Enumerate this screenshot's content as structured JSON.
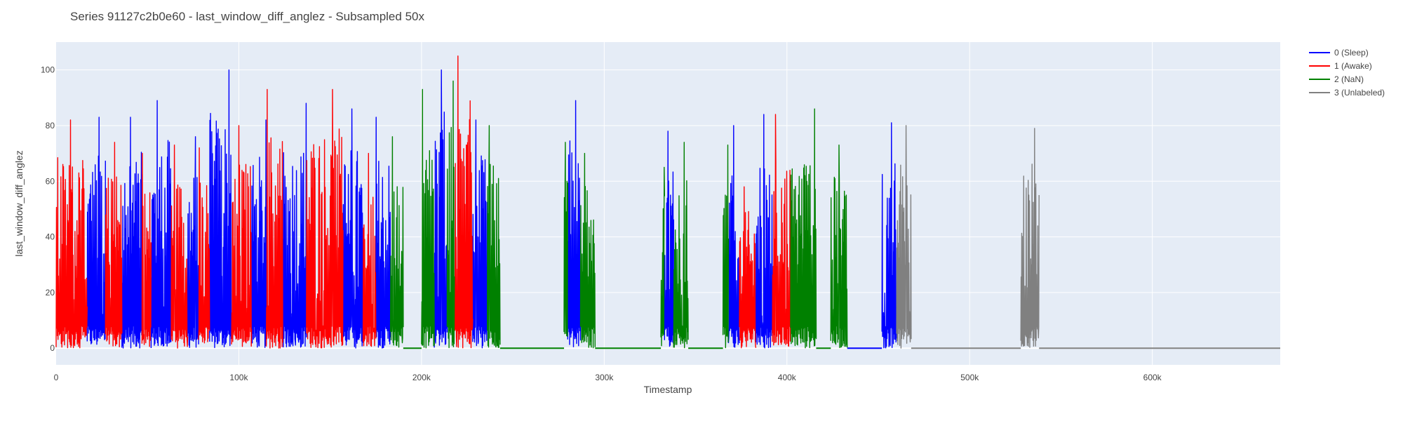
{
  "chart_data": {
    "type": "line",
    "title": "Series 91127c2b0e60 - last_window_diff_anglez - Subsampled 50x",
    "xlabel": "Timestamp",
    "ylabel": "last_window_diff_anglez",
    "xlim": [
      0,
      670000
    ],
    "ylim": [
      -6,
      110
    ],
    "xticks": [
      {
        "value": 0,
        "label": "0"
      },
      {
        "value": 100000,
        "label": "100k"
      },
      {
        "value": 200000,
        "label": "200k"
      },
      {
        "value": 300000,
        "label": "300k"
      },
      {
        "value": 400000,
        "label": "400k"
      },
      {
        "value": 500000,
        "label": "500k"
      },
      {
        "value": 600000,
        "label": "600k"
      }
    ],
    "yticks": [
      {
        "value": 0,
        "label": "0"
      },
      {
        "value": 20,
        "label": "20"
      },
      {
        "value": 40,
        "label": "40"
      },
      {
        "value": 60,
        "label": "60"
      },
      {
        "value": 80,
        "label": "80"
      },
      {
        "value": 100,
        "label": "100"
      }
    ],
    "grid": true,
    "legend_position": "top-right",
    "plot_background": "#e5ecf6",
    "series": [
      {
        "name": "0 (Sleep)",
        "color": "#0000ff",
        "segments": [
          {
            "x_start": 17000,
            "x_end": 27000,
            "peak": 83
          },
          {
            "x_start": 36000,
            "x_end": 47000,
            "peak": 83
          },
          {
            "x_start": 52000,
            "x_end": 63000,
            "peak": 89
          },
          {
            "x_start": 72000,
            "x_end": 78000,
            "peak": 76
          },
          {
            "x_start": 84000,
            "x_end": 96000,
            "peak": 100
          },
          {
            "x_start": 107000,
            "x_end": 115000,
            "peak": 82
          },
          {
            "x_start": 124000,
            "x_end": 137000,
            "peak": 88
          },
          {
            "x_start": 157000,
            "x_end": 168000,
            "peak": 86
          },
          {
            "x_start": 175000,
            "x_end": 183000,
            "peak": 83
          },
          {
            "x_start": 207000,
            "x_end": 214000,
            "peak": 100
          },
          {
            "x_start": 228000,
            "x_end": 236000,
            "peak": 82
          },
          {
            "x_start": 280000,
            "x_end": 287000,
            "peak": 89
          },
          {
            "x_start": 333000,
            "x_end": 338000,
            "peak": 78
          },
          {
            "x_start": 368000,
            "x_end": 374000,
            "peak": 80
          },
          {
            "x_start": 383000,
            "x_end": 392000,
            "peak": 84
          },
          {
            "x_start": 452000,
            "x_end": 460000,
            "peak": 81
          }
        ]
      },
      {
        "name": "1 (Awake)",
        "color": "#ff0000",
        "segments": [
          {
            "x_start": 0,
            "x_end": 17000,
            "peak": 82
          },
          {
            "x_start": 27000,
            "x_end": 36000,
            "peak": 74
          },
          {
            "x_start": 47000,
            "x_end": 52000,
            "peak": 70
          },
          {
            "x_start": 63000,
            "x_end": 72000,
            "peak": 73
          },
          {
            "x_start": 78000,
            "x_end": 84000,
            "peak": 72
          },
          {
            "x_start": 96000,
            "x_end": 107000,
            "peak": 80
          },
          {
            "x_start": 115000,
            "x_end": 124000,
            "peak": 93
          },
          {
            "x_start": 137000,
            "x_end": 157000,
            "peak": 93
          },
          {
            "x_start": 168000,
            "x_end": 175000,
            "peak": 70
          },
          {
            "x_start": 218000,
            "x_end": 228000,
            "peak": 105
          },
          {
            "x_start": 374000,
            "x_end": 383000,
            "peak": 58
          },
          {
            "x_start": 392000,
            "x_end": 402000,
            "peak": 84
          }
        ]
      },
      {
        "name": "2 (NaN)",
        "color": "#008000",
        "segments": [
          {
            "x_start": 183000,
            "x_end": 190000,
            "peak": 76
          },
          {
            "x_start": 200000,
            "x_end": 207000,
            "peak": 93
          },
          {
            "x_start": 214000,
            "x_end": 218000,
            "peak": 96
          },
          {
            "x_start": 236000,
            "x_end": 243000,
            "peak": 80
          },
          {
            "x_start": 278000,
            "x_end": 280000,
            "peak": 74
          },
          {
            "x_start": 287000,
            "x_end": 295000,
            "peak": 70
          },
          {
            "x_start": 331000,
            "x_end": 333000,
            "peak": 65
          },
          {
            "x_start": 338000,
            "x_end": 346000,
            "peak": 74
          },
          {
            "x_start": 365000,
            "x_end": 368000,
            "peak": 73
          },
          {
            "x_start": 402000,
            "x_end": 416000,
            "peak": 86
          },
          {
            "x_start": 424000,
            "x_end": 433000,
            "peak": 73
          }
        ]
      },
      {
        "name": "3 (Unlabeled)",
        "color": "#808080",
        "segments": [
          {
            "x_start": 460000,
            "x_end": 468000,
            "peak": 80
          },
          {
            "x_start": 528000,
            "x_end": 538000,
            "peak": 79
          }
        ]
      }
    ]
  }
}
